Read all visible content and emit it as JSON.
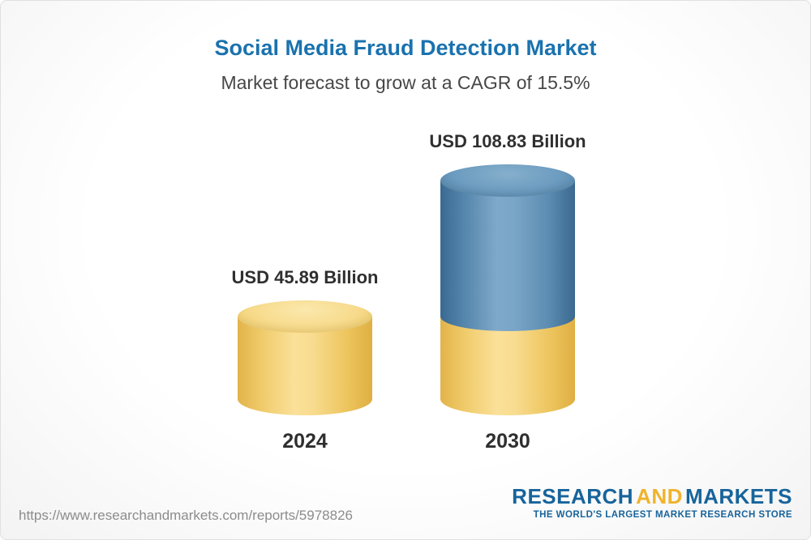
{
  "chart_data": {
    "type": "bar",
    "subtype": "3d-cylinder-columns",
    "title": "Social Media Fraud Detection Market",
    "subtitle": "Market forecast to grow at a CAGR of 15.5%",
    "cagr_percent": 15.5,
    "categories": [
      "2024",
      "2030"
    ],
    "values": [
      45.89,
      108.83
    ],
    "unit": "USD Billion",
    "data_labels": [
      "USD 45.89 Billion",
      "USD 108.83 Billion"
    ],
    "ylim": [
      0,
      120
    ],
    "grid": false,
    "legend": false,
    "axes_visible": false,
    "colors": {
      "title": "#1A72AE",
      "bar_2024": "#F6D77E",
      "bar_2030_growth_segment": "#6C9CC0",
      "bar_2030_base_segment": "#F6D77E",
      "label_text": "#2F2F2F"
    },
    "note": "2030 column is stacked: yellow base equals the 2024 value, blue upper segment is forecast growth to 2030"
  },
  "footer": {
    "url": "https://www.researchandmarkets.com/reports/5978826",
    "logo": {
      "part_research": "RESEARCH",
      "part_and": "AND",
      "part_markets": "MARKETS",
      "tagline": "THE WORLD'S LARGEST MARKET RESEARCH STORE",
      "brand_blue": "#17649B",
      "brand_gold": "#F0B32E"
    }
  }
}
